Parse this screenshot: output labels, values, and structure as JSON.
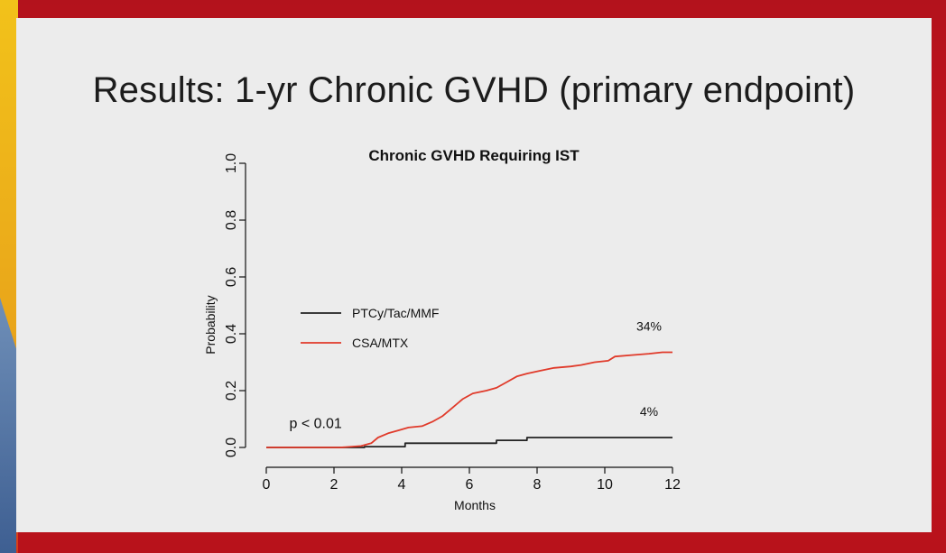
{
  "slide": {
    "title": "Results: 1-yr Chronic GVHD (primary endpoint)"
  },
  "chart_data": {
    "type": "line",
    "title": "Chronic GVHD Requiring IST",
    "xlabel": "Months",
    "ylabel": "Probability",
    "xlim": [
      0,
      12
    ],
    "ylim": [
      0,
      1.0
    ],
    "x_ticks": [
      0,
      2,
      4,
      6,
      8,
      10,
      12
    ],
    "y_ticks": [
      "0.0",
      "0.2",
      "0.4",
      "0.6",
      "0.8",
      "1.0"
    ],
    "grid": false,
    "legend_position": "center-left",
    "series": [
      {
        "name": "PTCy/Tac/MMF",
        "color": "#222222",
        "end_label": "4%",
        "points": [
          [
            0,
            0
          ],
          [
            2.9,
            0
          ],
          [
            2.9,
            0.003
          ],
          [
            4.1,
            0.003
          ],
          [
            4.1,
            0.015
          ],
          [
            6.8,
            0.015
          ],
          [
            6.8,
            0.025
          ],
          [
            7.7,
            0.025
          ],
          [
            7.7,
            0.035
          ],
          [
            12,
            0.035
          ]
        ]
      },
      {
        "name": "CSA/MTX",
        "color": "#e03a2a",
        "end_label": "34%",
        "points": [
          [
            0,
            0
          ],
          [
            2.2,
            0
          ],
          [
            2.8,
            0.005
          ],
          [
            3.1,
            0.015
          ],
          [
            3.3,
            0.035
          ],
          [
            3.6,
            0.05
          ],
          [
            3.9,
            0.06
          ],
          [
            4.2,
            0.07
          ],
          [
            4.6,
            0.075
          ],
          [
            4.9,
            0.09
          ],
          [
            5.2,
            0.11
          ],
          [
            5.5,
            0.14
          ],
          [
            5.8,
            0.17
          ],
          [
            6.1,
            0.19
          ],
          [
            6.5,
            0.2
          ],
          [
            6.8,
            0.21
          ],
          [
            7.1,
            0.23
          ],
          [
            7.4,
            0.25
          ],
          [
            7.7,
            0.26
          ],
          [
            8.1,
            0.27
          ],
          [
            8.5,
            0.28
          ],
          [
            9.0,
            0.285
          ],
          [
            9.3,
            0.29
          ],
          [
            9.7,
            0.3
          ],
          [
            10.1,
            0.305
          ],
          [
            10.3,
            0.32
          ],
          [
            10.8,
            0.325
          ],
          [
            11.3,
            0.33
          ],
          [
            11.7,
            0.335
          ],
          [
            12,
            0.335
          ]
        ]
      }
    ],
    "annotations": [
      {
        "text": "p < 0.01",
        "x": 1,
        "y": 0.09
      }
    ]
  }
}
